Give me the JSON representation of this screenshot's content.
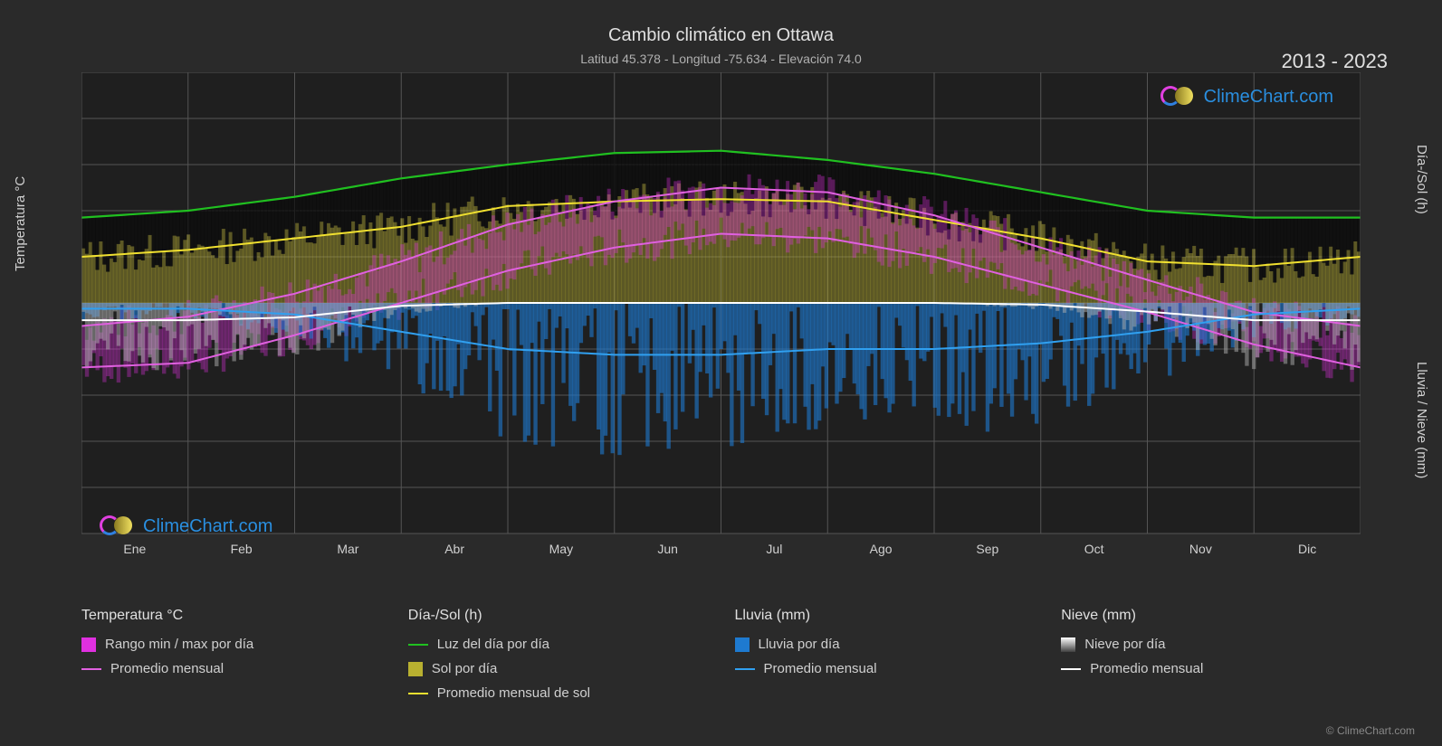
{
  "title": "Cambio climático en Ottawa",
  "subtitle": "Latitud 45.378 - Longitud -75.634 - Elevación 74.0",
  "year_range": "2013 - 2023",
  "copyright": "© ClimeChart.com",
  "brand": "ClimeChart.com",
  "brand_color": "#2a8fe0",
  "logo_c_color1": "#e040e0",
  "logo_c_color2": "#3080e0",
  "background_color": "#2a2a2a",
  "plot_bg": "#1f1f1f",
  "grid_color": "#555555",
  "text_color": "#d0d0d0",
  "axis_left": {
    "label": "Temperatura °C",
    "min": -50,
    "max": 50,
    "step": 10,
    "ticks": [
      -50,
      -40,
      -30,
      -20,
      -10,
      0,
      10,
      20,
      30,
      40,
      50
    ]
  },
  "axis_right_top": {
    "label": "Día-/Sol (h)",
    "min": 0,
    "max": 24,
    "step": 6,
    "ticks": [
      0,
      6,
      12,
      18,
      24
    ]
  },
  "axis_right_bottom": {
    "label": "Lluvia / Nieve (mm)",
    "min": 0,
    "max": 40,
    "step": 10,
    "ticks": [
      0,
      10,
      20,
      30,
      40
    ]
  },
  "months": [
    "Ene",
    "Feb",
    "Mar",
    "Abr",
    "May",
    "Jun",
    "Jul",
    "Ago",
    "Sep",
    "Oct",
    "Nov",
    "Dic"
  ],
  "series": {
    "daylight": {
      "color": "#20c020",
      "values": [
        18.5,
        20,
        23,
        27,
        30,
        32.5,
        33,
        31,
        28,
        24,
        20,
        18.5
      ]
    },
    "sun_avg": {
      "color": "#f0e030",
      "values": [
        10,
        11.5,
        14,
        16.5,
        21,
        22,
        22.5,
        22,
        18,
        14,
        9,
        8
      ]
    },
    "temp_avg": {
      "color": "#e060e0",
      "values_high": [
        -5,
        -3,
        2,
        9,
        17,
        22,
        25,
        24,
        19,
        12,
        5,
        -2
      ],
      "values_low": [
        -14,
        -13,
        -7,
        0,
        7,
        12,
        15,
        14,
        10,
        4,
        -2,
        -9
      ]
    },
    "rain_avg": {
      "color": "#30a0f0",
      "values": [
        1,
        1,
        2,
        5,
        8,
        9,
        9,
        8,
        8,
        7,
        5,
        2
      ]
    },
    "snow_avg": {
      "color": "#ffffff",
      "values": [
        3,
        3,
        2.5,
        0.5,
        0,
        0,
        0,
        0,
        0,
        0.3,
        1.5,
        3
      ]
    }
  },
  "bars": {
    "temp_range": {
      "color": "#e030e0",
      "opacity": 0.35
    },
    "sun": {
      "color": "#b8b030",
      "opacity": 0.4
    },
    "rain": {
      "color": "#1e7ad0",
      "opacity": 0.6
    },
    "snow": {
      "color": "#b0b0b0",
      "opacity": 0.5
    },
    "sun_top_shade": {
      "color": "#0a0a0a",
      "opacity": 0.7
    }
  },
  "legend": {
    "groups": [
      {
        "title": "Temperatura °C",
        "items": [
          {
            "type": "swatch",
            "color": "#e030e0",
            "label": "Rango min / max por día"
          },
          {
            "type": "line",
            "color": "#e060e0",
            "label": "Promedio mensual"
          }
        ]
      },
      {
        "title": "Día-/Sol (h)",
        "items": [
          {
            "type": "line",
            "color": "#20c020",
            "label": "Luz del día por día"
          },
          {
            "type": "swatch",
            "color": "#b8b030",
            "label": "Sol por día"
          },
          {
            "type": "line",
            "color": "#f0e030",
            "label": "Promedio mensual de sol"
          }
        ]
      },
      {
        "title": "Lluvia (mm)",
        "items": [
          {
            "type": "swatch",
            "color": "#1e7ad0",
            "label": "Lluvia por día"
          },
          {
            "type": "line",
            "color": "#30a0f0",
            "label": "Promedio mensual"
          }
        ]
      },
      {
        "title": "Nieve (mm)",
        "items": [
          {
            "type": "swatch-grad",
            "color": "#ffffff",
            "label": "Nieve por día"
          },
          {
            "type": "line",
            "color": "#ffffff",
            "label": "Promedio mensual"
          }
        ]
      }
    ]
  }
}
